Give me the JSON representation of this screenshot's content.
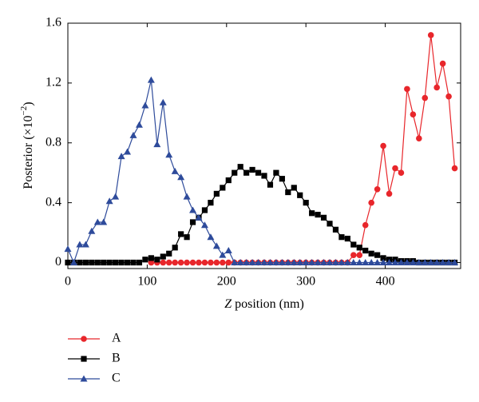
{
  "chart_data": {
    "type": "line",
    "xlabel": [
      "Z",
      " position (nm)"
    ],
    "ylabel": [
      "Posterior (×10",
      "−2",
      ")"
    ],
    "x": [
      0,
      7.5,
      15,
      22.5,
      30,
      37.5,
      45,
      52.5,
      60,
      67.5,
      75,
      82.5,
      90,
      97.5,
      105,
      112.5,
      120,
      127.5,
      135,
      142.5,
      150,
      157.5,
      165,
      172.5,
      180,
      187.5,
      195,
      202.5,
      210,
      217.5,
      225,
      232.5,
      240,
      247.5,
      255,
      262.5,
      270,
      277.5,
      285,
      292.5,
      300,
      307.5,
      315,
      322.5,
      330,
      337.5,
      345,
      352.5,
      360,
      367.5,
      375,
      382.5,
      390,
      397.5,
      405,
      412.5,
      420,
      427.5,
      435,
      442.5,
      450,
      457.5,
      465,
      472.5,
      480,
      487.5
    ],
    "series": [
      {
        "name": "A",
        "color": "#e8262b",
        "marker": "circle",
        "values": [
          null,
          null,
          null,
          null,
          null,
          null,
          null,
          null,
          null,
          null,
          null,
          null,
          null,
          null,
          0,
          0,
          0,
          0,
          0,
          0,
          0,
          0,
          0,
          0,
          0,
          0,
          0,
          0,
          0,
          0,
          0,
          0,
          0,
          0,
          0,
          0,
          0,
          0,
          0,
          0,
          0,
          0,
          0,
          0,
          0,
          0,
          0,
          0,
          0.05,
          0.05,
          0.25,
          0.4,
          0.49,
          0.78,
          0.46,
          0.63,
          0.6,
          1.16,
          0.99,
          0.83,
          1.1,
          1.52,
          1.17,
          1.33,
          1.11,
          0.63
        ]
      },
      {
        "name": "B",
        "color": "#000000",
        "marker": "square",
        "values": [
          0,
          0,
          0,
          0,
          0,
          0,
          0,
          0,
          0,
          0,
          0,
          0,
          0,
          0.02,
          0.03,
          0.02,
          0.04,
          0.06,
          0.1,
          0.19,
          0.17,
          0.27,
          0.3,
          0.35,
          0.4,
          0.46,
          0.5,
          0.55,
          0.6,
          0.64,
          0.6,
          0.62,
          0.6,
          0.58,
          0.52,
          0.6,
          0.56,
          0.47,
          0.5,
          0.45,
          0.4,
          0.33,
          0.32,
          0.3,
          0.26,
          0.22,
          0.17,
          0.16,
          0.12,
          0.1,
          0.08,
          0.06,
          0.05,
          0.03,
          0.02,
          0.02,
          0.01,
          0.01,
          0.01,
          0,
          0,
          0,
          0,
          0,
          0,
          0
        ]
      },
      {
        "name": "C",
        "color": "#2e4b9b",
        "marker": "triangle",
        "values": [
          0.09,
          0,
          0.12,
          0.12,
          0.21,
          0.27,
          0.27,
          0.41,
          0.44,
          0.71,
          0.74,
          0.85,
          0.92,
          1.05,
          1.22,
          0.79,
          1.07,
          0.72,
          0.61,
          0.57,
          0.44,
          0.35,
          0.3,
          0.25,
          0.17,
          0.11,
          0.05,
          0.08,
          0,
          0,
          0,
          0,
          0,
          0,
          0,
          0,
          0,
          0,
          0,
          0,
          0,
          0,
          0,
          0,
          0,
          0,
          0,
          0,
          0,
          0,
          0,
          0,
          0,
          0,
          0,
          0,
          0,
          0,
          0,
          0,
          0,
          0,
          0,
          0,
          0,
          0
        ]
      }
    ],
    "xlim": [
      0,
      495
    ],
    "xticks": [
      0,
      100,
      200,
      300,
      400
    ],
    "ylim": [
      -0.04,
      1.6
    ],
    "yticks": [
      0,
      0.4,
      0.8,
      1.2,
      1.6
    ]
  }
}
